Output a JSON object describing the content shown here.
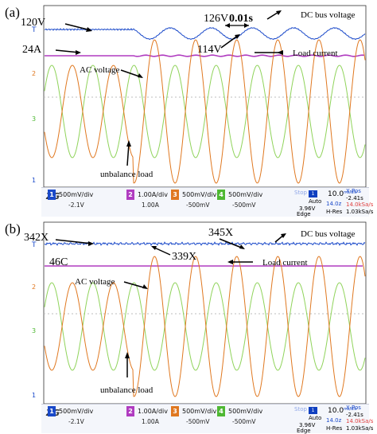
{
  "panels": [
    {
      "label": "(a)",
      "dc_left_value": "120V",
      "dc_top_value": "126V",
      "period_label": "0.01s",
      "dc_dip_value": "114V",
      "current_value": "24A",
      "dc_bus_label": "DC bus voltage",
      "load_current_label": "Load current",
      "ac_voltage_label": "AC  voltage",
      "unbalance_label": "unbalance load",
      "ch_markers": {
        "trig": "T",
        "ch2": "2",
        "ch3": "3",
        "ch1": "1"
      },
      "channels": [
        {
          "num": "1",
          "setting": "500mV/div",
          "offset": "-2.1V",
          "color": "#1a49c9"
        },
        {
          "num": "2",
          "setting": "1.00A/div",
          "offset": "1.00A",
          "color": "#b03cc0"
        },
        {
          "num": "3",
          "setting": "500mV/div",
          "offset": "-500mV",
          "color": "#e07820"
        },
        {
          "num": "4",
          "setting": "500mV/div",
          "offset": "-500mV",
          "color": "#4fb833"
        }
      ],
      "scope": {
        "state": "Stop",
        "trigger_mode": "Auto",
        "trigger_level": "3.96V",
        "trigger_type": "Edge",
        "timebase": "10.0",
        "timebase_unit": "ms/div",
        "xpos_label": "X-Pos",
        "xpos_value": "-2.41s",
        "h_res": "H-Res",
        "sample_rate": "14.0kSa/s",
        "sample_rate_red": "14.0kSa/s",
        "samples": "1.03kSa/s",
        "time": "14.0z"
      }
    },
    {
      "label": "(b)",
      "dc_left_value": "342X",
      "dc_top_value": "345X",
      "dc_dip_value": "339X",
      "current_value": "46C",
      "dc_bus_label": "DC bus voltage",
      "load_current_label": "Load current",
      "ac_voltage_label": "AC  voltage",
      "unbalance_label": "unbalance load",
      "ch_markers": {
        "trig": "T",
        "ch2": "2",
        "ch3": "3",
        "ch1": "1"
      },
      "channels": [
        {
          "num": "1",
          "setting": "500mV/div",
          "offset": "-2.1V",
          "color": "#1a49c9"
        },
        {
          "num": "2",
          "setting": "1.00A/div",
          "offset": "1.00A",
          "color": "#b03cc0"
        },
        {
          "num": "3",
          "setting": "500mV/div",
          "offset": "-500mV",
          "color": "#e07820"
        },
        {
          "num": "4",
          "setting": "500mV/div",
          "offset": "-500mV",
          "color": "#4fb833"
        }
      ],
      "scope": {
        "state": "Stop",
        "trigger_mode": "Auto",
        "trigger_level": "3.96V",
        "trigger_type": "Edge",
        "timebase": "10.0",
        "timebase_unit": "ms/div",
        "xpos_label": "X-Pos",
        "xpos_value": "-2.41s",
        "h_res": "H-Res",
        "sample_rate": "14.0kSa/s",
        "sample_rate_red": "14.0kSa/s",
        "samples": "1.03kSa/s",
        "time": "14.0z"
      }
    }
  ],
  "trace_colors": {
    "dc_bus": "#1a49c9",
    "load_current": "#b03cc0",
    "ac_phase_a": "#e07820",
    "ac_phase_b": "#8fd35a",
    "grid": "#c9c9c9"
  },
  "waveform": {
    "ac_cycles_per_screen": 7.8,
    "panel_a_dc_ripple_cycles": 7.8
  }
}
